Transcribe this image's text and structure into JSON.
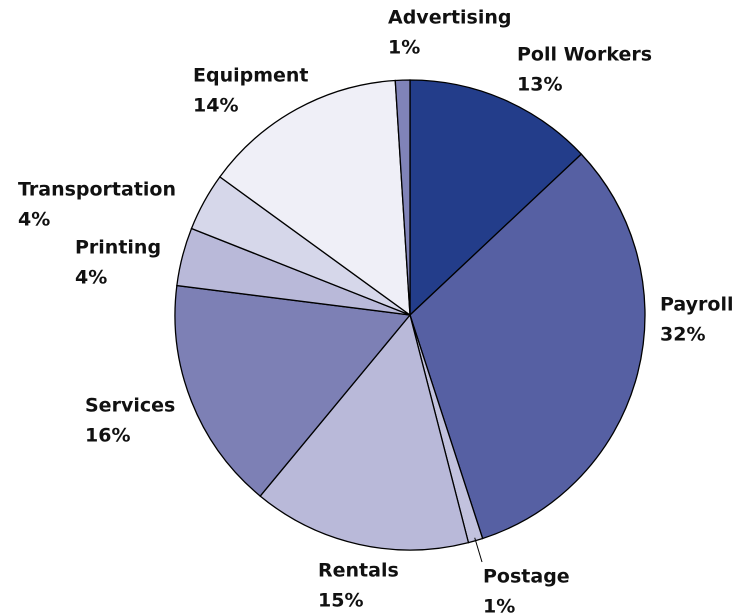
{
  "chart_data": {
    "type": "pie",
    "categories": [
      "Poll Workers",
      "Payroll",
      "Postage",
      "Rentals",
      "Services",
      "Printing",
      "Transportation",
      "Equipment",
      "Advertising"
    ],
    "values": [
      13,
      32,
      1,
      15,
      16,
      4,
      4,
      14,
      1
    ],
    "value_labels": [
      "13%",
      "32%",
      "1%",
      "15%",
      "16%",
      "4%",
      "4%",
      "14%",
      "1%"
    ],
    "colors": [
      "#233d8a",
      "#5660a3",
      "#c2c2de",
      "#b9b9d9",
      "#7d80b5",
      "#b9b9d9",
      "#d6d7ea",
      "#efeff7",
      "#8083b8"
    ]
  }
}
